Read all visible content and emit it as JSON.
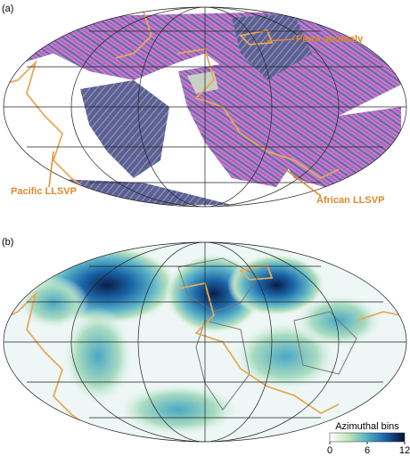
{
  "panels": [
    {
      "label": "(a)",
      "annotations": [
        "Perm anomaly",
        "Pacific LLSVP",
        "African LLSVP"
      ]
    },
    {
      "label": "(b)",
      "colorbar": {
        "title": "Azimuthal bins",
        "lim": [
          0,
          12
        ],
        "ticks": [
          0,
          6,
          12
        ]
      }
    }
  ]
}
